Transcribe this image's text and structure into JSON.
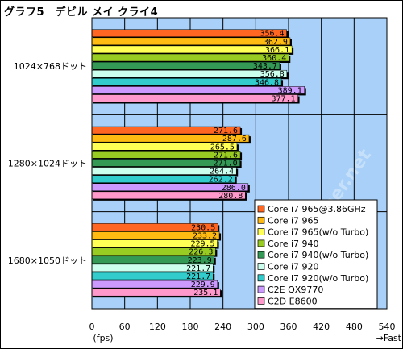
{
  "chart_data": {
    "type": "bar",
    "orientation": "horizontal",
    "title": "グラフ5　デビル メイ クライ4",
    "categories": [
      "1024×768ドット",
      "1280×1024ドット",
      "1680×1050ドット"
    ],
    "series": [
      {
        "name": "Core i7 965@3.86GHz",
        "color": "#ff6622",
        "values": [
          356.4,
          271.6,
          230.5
        ]
      },
      {
        "name": "Core i7 965",
        "color": "#ffbb11",
        "values": [
          362.9,
          287.6,
          233.2
        ]
      },
      {
        "name": "Core i7 965(w/o Turbo)",
        "color": "#ffff55",
        "values": [
          366.1,
          265.5,
          229.5
        ]
      },
      {
        "name": "Core i7 940",
        "color": "#99cc22",
        "values": [
          360.4,
          271.6,
          226.3
        ]
      },
      {
        "name": "Core i7 940(w/o Turbo)",
        "color": "#339955",
        "values": [
          343.7,
          271.0,
          223.9
        ]
      },
      {
        "name": "Core i7 920",
        "color": "#ccffee",
        "values": [
          356.8,
          264.4,
          221.7
        ]
      },
      {
        "name": "Core i7 920(w/o Turbo)",
        "color": "#33cccc",
        "values": [
          346.8,
          262.2,
          221.7
        ]
      },
      {
        "name": "C2E QX9770",
        "color": "#cc99ff",
        "values": [
          389.1,
          286.0,
          229.9
        ]
      },
      {
        "name": "C2D E8600",
        "color": "#ff99cc",
        "values": [
          377.1,
          280.8,
          235.1
        ]
      }
    ],
    "x_ticks": [
      "0",
      "60",
      "120",
      "180",
      "240",
      "300",
      "360",
      "420",
      "480",
      "540"
    ],
    "xlim": [
      0,
      540
    ],
    "x_unit": "(fps)",
    "x_direction": "→Fast",
    "grid": true,
    "legend_position": "bottom-right",
    "watermark": "4Gamer.net",
    "plot_color": "#a8d0f8",
    "grid_color": "#000000"
  }
}
